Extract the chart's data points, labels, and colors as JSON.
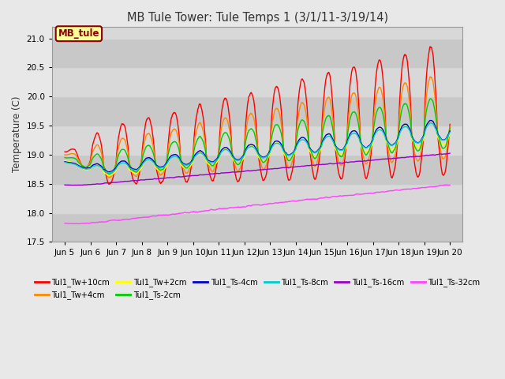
{
  "title": "MB Tule Tower: Tule Temps 1 (3/1/11-3/19/14)",
  "ylabel": "Temperature (C)",
  "xlim_days": [
    4.5,
    20.5
  ],
  "ylim": [
    17.5,
    21.2
  ],
  "yticks": [
    17.5,
    18.0,
    18.5,
    19.0,
    19.5,
    20.0,
    20.5,
    21.0
  ],
  "xtick_labels": [
    "Jun 5",
    "Jun 6",
    "Jun 7",
    "Jun 8",
    "Jun 9",
    "Jun 10",
    "Jun 11",
    "Jun 12",
    "Jun 13",
    "Jun 14",
    "Jun 15",
    "Jun 16",
    "Jun 17",
    "Jun 18",
    "Jun 19",
    "Jun 20"
  ],
  "xtick_positions": [
    5,
    6,
    7,
    8,
    9,
    10,
    11,
    12,
    13,
    14,
    15,
    16,
    17,
    18,
    19,
    20
  ],
  "bg_color": "#e8e8e8",
  "plot_bg_color": "#d0d0d0",
  "legend_label": "MB_tule",
  "legend_box_color": "#ffff99",
  "legend_box_edge": "#880000",
  "legend_text_color": "#880000",
  "series": [
    {
      "label": "Tul1_Tw+10cm",
      "color": "#ff0000"
    },
    {
      "label": "Tul1_Tw+4cm",
      "color": "#ff8800"
    },
    {
      "label": "Tul1_Tw+2cm",
      "color": "#ffff00"
    },
    {
      "label": "Tul1_Ts-2cm",
      "color": "#00cc00"
    },
    {
      "label": "Tul1_Ts-4cm",
      "color": "#0000cc"
    },
    {
      "label": "Tul1_Ts-8cm",
      "color": "#00cccc"
    },
    {
      "label": "Tul1_Ts-16cm",
      "color": "#9900cc"
    },
    {
      "label": "Tul1_Ts-32cm",
      "color": "#ff44ff"
    }
  ]
}
